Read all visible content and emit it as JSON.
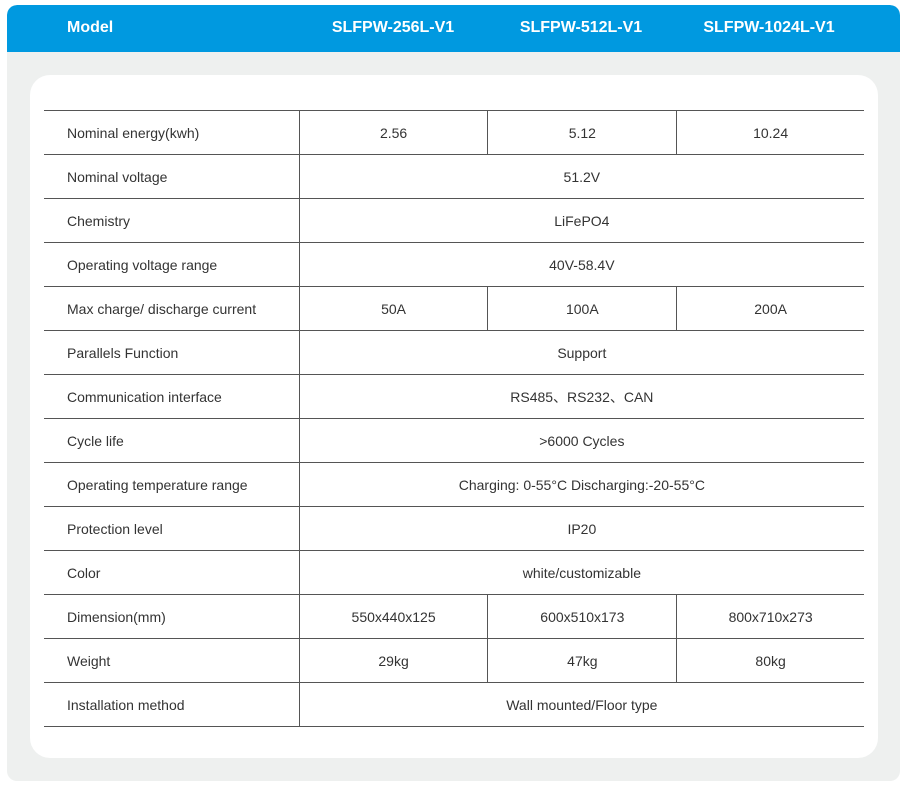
{
  "header": {
    "model_label": "Model",
    "models": [
      "SLFPW-256L-V1",
      "SLFPW-512L-V1",
      "SLFPW-1024L-V1"
    ]
  },
  "colors": {
    "header_bg": "#0099e0",
    "panel_bg": "#eef0ef"
  },
  "rows": [
    {
      "label": "Nominal energy(kwh)",
      "values": [
        "2.56",
        "5.12",
        "10.24"
      ]
    },
    {
      "label": "Nominal voltage",
      "values": [
        "51.2V"
      ]
    },
    {
      "label": "Chemistry",
      "values": [
        "LiFePO4"
      ]
    },
    {
      "label": "Operating voltage range",
      "values": [
        "40V-58.4V"
      ]
    },
    {
      "label": "Max charge/ discharge current",
      "values": [
        "50A",
        "100A",
        "200A"
      ]
    },
    {
      "label": "Parallels Function",
      "values": [
        "Support"
      ]
    },
    {
      "label": "Communication interface",
      "values": [
        "RS485、RS232、CAN"
      ]
    },
    {
      "label": "Cycle life",
      "values": [
        ">6000 Cycles"
      ]
    },
    {
      "label": "Operating temperature range",
      "values": [
        "Charging: 0-55°C Discharging:-20-55°C"
      ]
    },
    {
      "label": "Protection level",
      "values": [
        "IP20"
      ]
    },
    {
      "label": "Color",
      "values": [
        "white/customizable"
      ]
    },
    {
      "label": "Dimension(mm)",
      "values": [
        "550x440x125",
        "600x510x173",
        "800x710x273"
      ]
    },
    {
      "label": "Weight",
      "values": [
        "29kg",
        "47kg",
        "80kg"
      ]
    },
    {
      "label": "Installation method",
      "values": [
        "Wall mounted/Floor type"
      ]
    }
  ]
}
